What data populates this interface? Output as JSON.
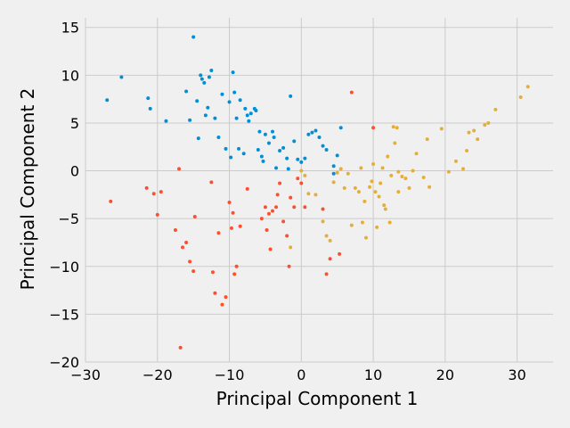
{
  "chart_data": {
    "type": "scatter",
    "title": "",
    "xlabel": "Principal Component 1",
    "ylabel": "Principal Component 2",
    "xlim": [
      -30,
      35
    ],
    "ylim": [
      -20,
      16
    ],
    "xticks": [
      -30,
      -20,
      -10,
      0,
      10,
      20,
      30
    ],
    "yticks": [
      -20,
      -15,
      -10,
      -5,
      0,
      5,
      10,
      15
    ],
    "xtick_labels": [
      "−30",
      "−20",
      "−10",
      "0",
      "10",
      "20",
      "30"
    ],
    "ytick_labels": [
      "−20",
      "−15",
      "−10",
      "−5",
      "0",
      "5",
      "10",
      "15"
    ],
    "grid": true,
    "series": [
      {
        "color": "#008fd5",
        "points": [
          [
            -27,
            7.4
          ],
          [
            -25,
            9.8
          ],
          [
            -21.3,
            7.6
          ],
          [
            -21,
            6.5
          ],
          [
            -18.8,
            5.2
          ],
          [
            -16,
            8.3
          ],
          [
            -15.5,
            5.3
          ],
          [
            -15,
            14
          ],
          [
            -14.5,
            7.3
          ],
          [
            -14.3,
            3.4
          ],
          [
            -14,
            10
          ],
          [
            -13.8,
            9.6
          ],
          [
            -13.5,
            9.2
          ],
          [
            -13.3,
            5.8
          ],
          [
            -13,
            6.6
          ],
          [
            -12.8,
            9.8
          ],
          [
            -12.5,
            10.5
          ],
          [
            -12,
            5.5
          ],
          [
            -11.5,
            3.5
          ],
          [
            -11,
            8
          ],
          [
            -10.5,
            2.3
          ],
          [
            -10,
            7.2
          ],
          [
            -9.8,
            1.4
          ],
          [
            -9.5,
            10.3
          ],
          [
            -9.3,
            8.2
          ],
          [
            -9,
            5.5
          ],
          [
            -8.7,
            2.3
          ],
          [
            -8.5,
            7.4
          ],
          [
            -8,
            1.8
          ],
          [
            -7.8,
            6.5
          ],
          [
            -7.5,
            5.8
          ],
          [
            -7.3,
            5.2
          ],
          [
            -7,
            6
          ],
          [
            -6.5,
            6.5
          ],
          [
            -6.3,
            6.3
          ],
          [
            -6,
            2.2
          ],
          [
            -5.8,
            4.1
          ],
          [
            -5.5,
            1.5
          ],
          [
            -5.3,
            1
          ],
          [
            -5,
            3.8
          ],
          [
            -4.5,
            2.9
          ],
          [
            -4,
            4.1
          ],
          [
            -3.8,
            3.5
          ],
          [
            -3.5,
            0.3
          ],
          [
            -3,
            2.1
          ],
          [
            -2.5,
            2.4
          ],
          [
            -2,
            1.3
          ],
          [
            -1.8,
            0.2
          ],
          [
            -1.5,
            7.8
          ],
          [
            -1,
            3.1
          ],
          [
            -0.5,
            1.2
          ],
          [
            0,
            0.9
          ],
          [
            0.5,
            1.3
          ],
          [
            1,
            3.8
          ],
          [
            1.5,
            4
          ],
          [
            2,
            4.2
          ],
          [
            2.5,
            3.5
          ],
          [
            3,
            2.6
          ],
          [
            3.5,
            2.2
          ],
          [
            4.5,
            0.5
          ],
          [
            5,
            1.6
          ],
          [
            5.5,
            4.5
          ],
          [
            4.5,
            -0.3
          ]
        ]
      },
      {
        "color": "#fc4f30",
        "points": [
          [
            -26.5,
            -3.2
          ],
          [
            -21.5,
            -1.8
          ],
          [
            -20.5,
            -2.4
          ],
          [
            -20,
            -4.6
          ],
          [
            -19.5,
            -2.2
          ],
          [
            -17.5,
            -6.2
          ],
          [
            -17,
            0.2
          ],
          [
            -16.8,
            -18.5
          ],
          [
            -16.5,
            -8
          ],
          [
            -16,
            -7.5
          ],
          [
            -15.5,
            -9.5
          ],
          [
            -15,
            -10.5
          ],
          [
            -14.8,
            -4.8
          ],
          [
            -12.5,
            -1.2
          ],
          [
            -12.3,
            -10.6
          ],
          [
            -12,
            -12.8
          ],
          [
            -11.5,
            -6.5
          ],
          [
            -11,
            -14
          ],
          [
            -10.5,
            -13.2
          ],
          [
            -10,
            -3.3
          ],
          [
            -9.7,
            -6
          ],
          [
            -9.5,
            -4.4
          ],
          [
            -9.3,
            -10.8
          ],
          [
            -9,
            -10
          ],
          [
            -8.5,
            -5.8
          ],
          [
            -7.5,
            -1.9
          ],
          [
            -5.5,
            -5
          ],
          [
            -5,
            -3.8
          ],
          [
            -4.8,
            -6.2
          ],
          [
            -4.5,
            -4.5
          ],
          [
            -4.3,
            -8.2
          ],
          [
            -4,
            -4.2
          ],
          [
            -3.5,
            -3.8
          ],
          [
            -3.3,
            -2.5
          ],
          [
            -3,
            -1.3
          ],
          [
            -2.5,
            -5.3
          ],
          [
            -2,
            -6.8
          ],
          [
            -1.7,
            -10
          ],
          [
            -1.5,
            -2.8
          ],
          [
            -1,
            -3.8
          ],
          [
            -0.5,
            -0.8
          ],
          [
            0,
            -1.3
          ],
          [
            0.5,
            -3.8
          ],
          [
            3,
            -4
          ],
          [
            3.5,
            -10.8
          ],
          [
            4,
            -9.2
          ],
          [
            5.3,
            -8.7
          ],
          [
            7,
            8.2
          ],
          [
            10,
            4.5
          ]
        ]
      },
      {
        "color": "#e5ae38",
        "points": [
          [
            -1.5,
            -8
          ],
          [
            0,
            0
          ],
          [
            0.5,
            -0.5
          ],
          [
            1,
            -2.4
          ],
          [
            2,
            -2.5
          ],
          [
            3,
            -5.3
          ],
          [
            3.5,
            -6.8
          ],
          [
            4,
            -7.3
          ],
          [
            4.5,
            -1.2
          ],
          [
            5,
            -0.2
          ],
          [
            5.5,
            0.2
          ],
          [
            6,
            -1.8
          ],
          [
            6.5,
            -0.3
          ],
          [
            7,
            -5.7
          ],
          [
            7.5,
            -1.8
          ],
          [
            8,
            -2.2
          ],
          [
            8.3,
            0.3
          ],
          [
            8.5,
            -5.4
          ],
          [
            8.8,
            -3.2
          ],
          [
            9,
            -7
          ],
          [
            9.5,
            -1.7
          ],
          [
            9.8,
            -1.1
          ],
          [
            10,
            0.7
          ],
          [
            10.3,
            -2.2
          ],
          [
            10.5,
            -5.9
          ],
          [
            10.8,
            -2.7
          ],
          [
            11,
            -1.3
          ],
          [
            11.3,
            0.3
          ],
          [
            11.5,
            -3.6
          ],
          [
            11.7,
            -4
          ],
          [
            12,
            1.5
          ],
          [
            12.3,
            -5.4
          ],
          [
            12.5,
            -0.5
          ],
          [
            12.8,
            4.6
          ],
          [
            13,
            2.9
          ],
          [
            13.3,
            4.5
          ],
          [
            13.5,
            -2.2
          ],
          [
            14,
            -0.6
          ],
          [
            14.5,
            -0.8
          ],
          [
            15,
            -1.8
          ],
          [
            15.5,
            0
          ],
          [
            16,
            1.8
          ],
          [
            17,
            -0.7
          ],
          [
            17.5,
            3.3
          ],
          [
            17.8,
            -1.7
          ],
          [
            19.5,
            4.4
          ],
          [
            20.5,
            -0.1
          ],
          [
            21.5,
            1
          ],
          [
            23,
            2.1
          ],
          [
            23.3,
            4
          ],
          [
            24,
            4.2
          ],
          [
            24.5,
            3.3
          ],
          [
            25.5,
            4.8
          ],
          [
            26,
            5
          ],
          [
            27,
            6.4
          ],
          [
            30.5,
            7.7
          ],
          [
            31.5,
            8.8
          ],
          [
            22.5,
            0.2
          ],
          [
            13.5,
            -0.1
          ]
        ]
      }
    ]
  }
}
